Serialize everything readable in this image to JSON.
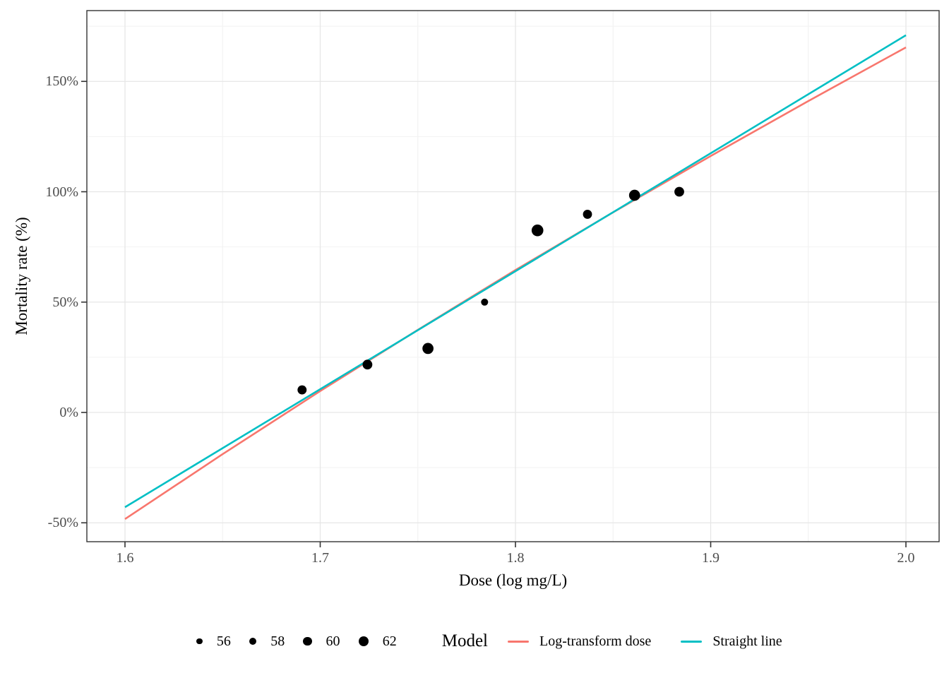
{
  "chart_data": {
    "type": "scatter",
    "title": "",
    "xlabel": "Dose (log mg/L)",
    "ylabel": "Mortality rate (%)",
    "grid": true,
    "legend_position": "bottom",
    "x_axis": {
      "lim": [
        1.58,
        2.017
      ],
      "ticks": [
        {
          "value": 1.6,
          "label": "1.6"
        },
        {
          "value": 1.7,
          "label": "1.7"
        },
        {
          "value": 1.8,
          "label": "1.8"
        },
        {
          "value": 1.9,
          "label": "1.9"
        },
        {
          "value": 2.0,
          "label": "2.0"
        }
      ],
      "minor": [
        1.65,
        1.75,
        1.85,
        1.95
      ]
    },
    "y_axis": {
      "lim": [
        -58.6,
        182.1
      ],
      "ticks": [
        {
          "value": -50,
          "label": "-50%"
        },
        {
          "value": 0,
          "label": "0%"
        },
        {
          "value": 50,
          "label": "50%"
        },
        {
          "value": 100,
          "label": "100%"
        },
        {
          "value": 150,
          "label": "150%"
        }
      ],
      "minor": [
        -25,
        25,
        75,
        125,
        175
      ]
    },
    "points": [
      {
        "dose": 1.6907,
        "mortality_pct": 10.2,
        "n": 59
      },
      {
        "dose": 1.7242,
        "mortality_pct": 21.7,
        "n": 60
      },
      {
        "dose": 1.7552,
        "mortality_pct": 29.0,
        "n": 62
      },
      {
        "dose": 1.7842,
        "mortality_pct": 50.0,
        "n": 56
      },
      {
        "dose": 1.8113,
        "mortality_pct": 82.5,
        "n": 63
      },
      {
        "dose": 1.8369,
        "mortality_pct": 89.8,
        "n": 59
      },
      {
        "dose": 1.861,
        "mortality_pct": 98.4,
        "n": 62
      },
      {
        "dose": 1.8839,
        "mortality_pct": 100.0,
        "n": 60
      }
    ],
    "lines": [
      {
        "name": "Log-transform dose",
        "color": "#F8766D",
        "points": [
          [
            1.6,
            -48.3
          ],
          [
            1.65,
            -18.9
          ],
          [
            1.7,
            9.7
          ],
          [
            1.75,
            37.4
          ],
          [
            1.8,
            64.5
          ],
          [
            1.85,
            90.7
          ],
          [
            1.9,
            116.2
          ],
          [
            1.95,
            141.1
          ],
          [
            2.0,
            165.4
          ]
        ]
      },
      {
        "name": "Straight line",
        "color": "#00BFC4",
        "points": [
          [
            1.6,
            -42.9
          ],
          [
            2.0,
            170.9
          ]
        ]
      }
    ],
    "legend": {
      "size": {
        "values": [
          "56",
          "58",
          "60",
          "62"
        ]
      },
      "model": {
        "title": "Model",
        "items": [
          {
            "label": "Log-transform dose",
            "color": "#F8766D"
          },
          {
            "label": "Straight line",
            "color": "#00BFC4"
          }
        ]
      }
    }
  },
  "colors": {
    "log_line": "#F8766D",
    "straight_line": "#00BFC4",
    "point": "#000000",
    "grid_major": "#e6e6e6",
    "grid_minor": "#f2f2f2",
    "panel_border": "#343434",
    "tick_mark": "#333333",
    "tick_label": "#4d4d4d",
    "axis_title": "#000000",
    "background": "#ffffff"
  }
}
